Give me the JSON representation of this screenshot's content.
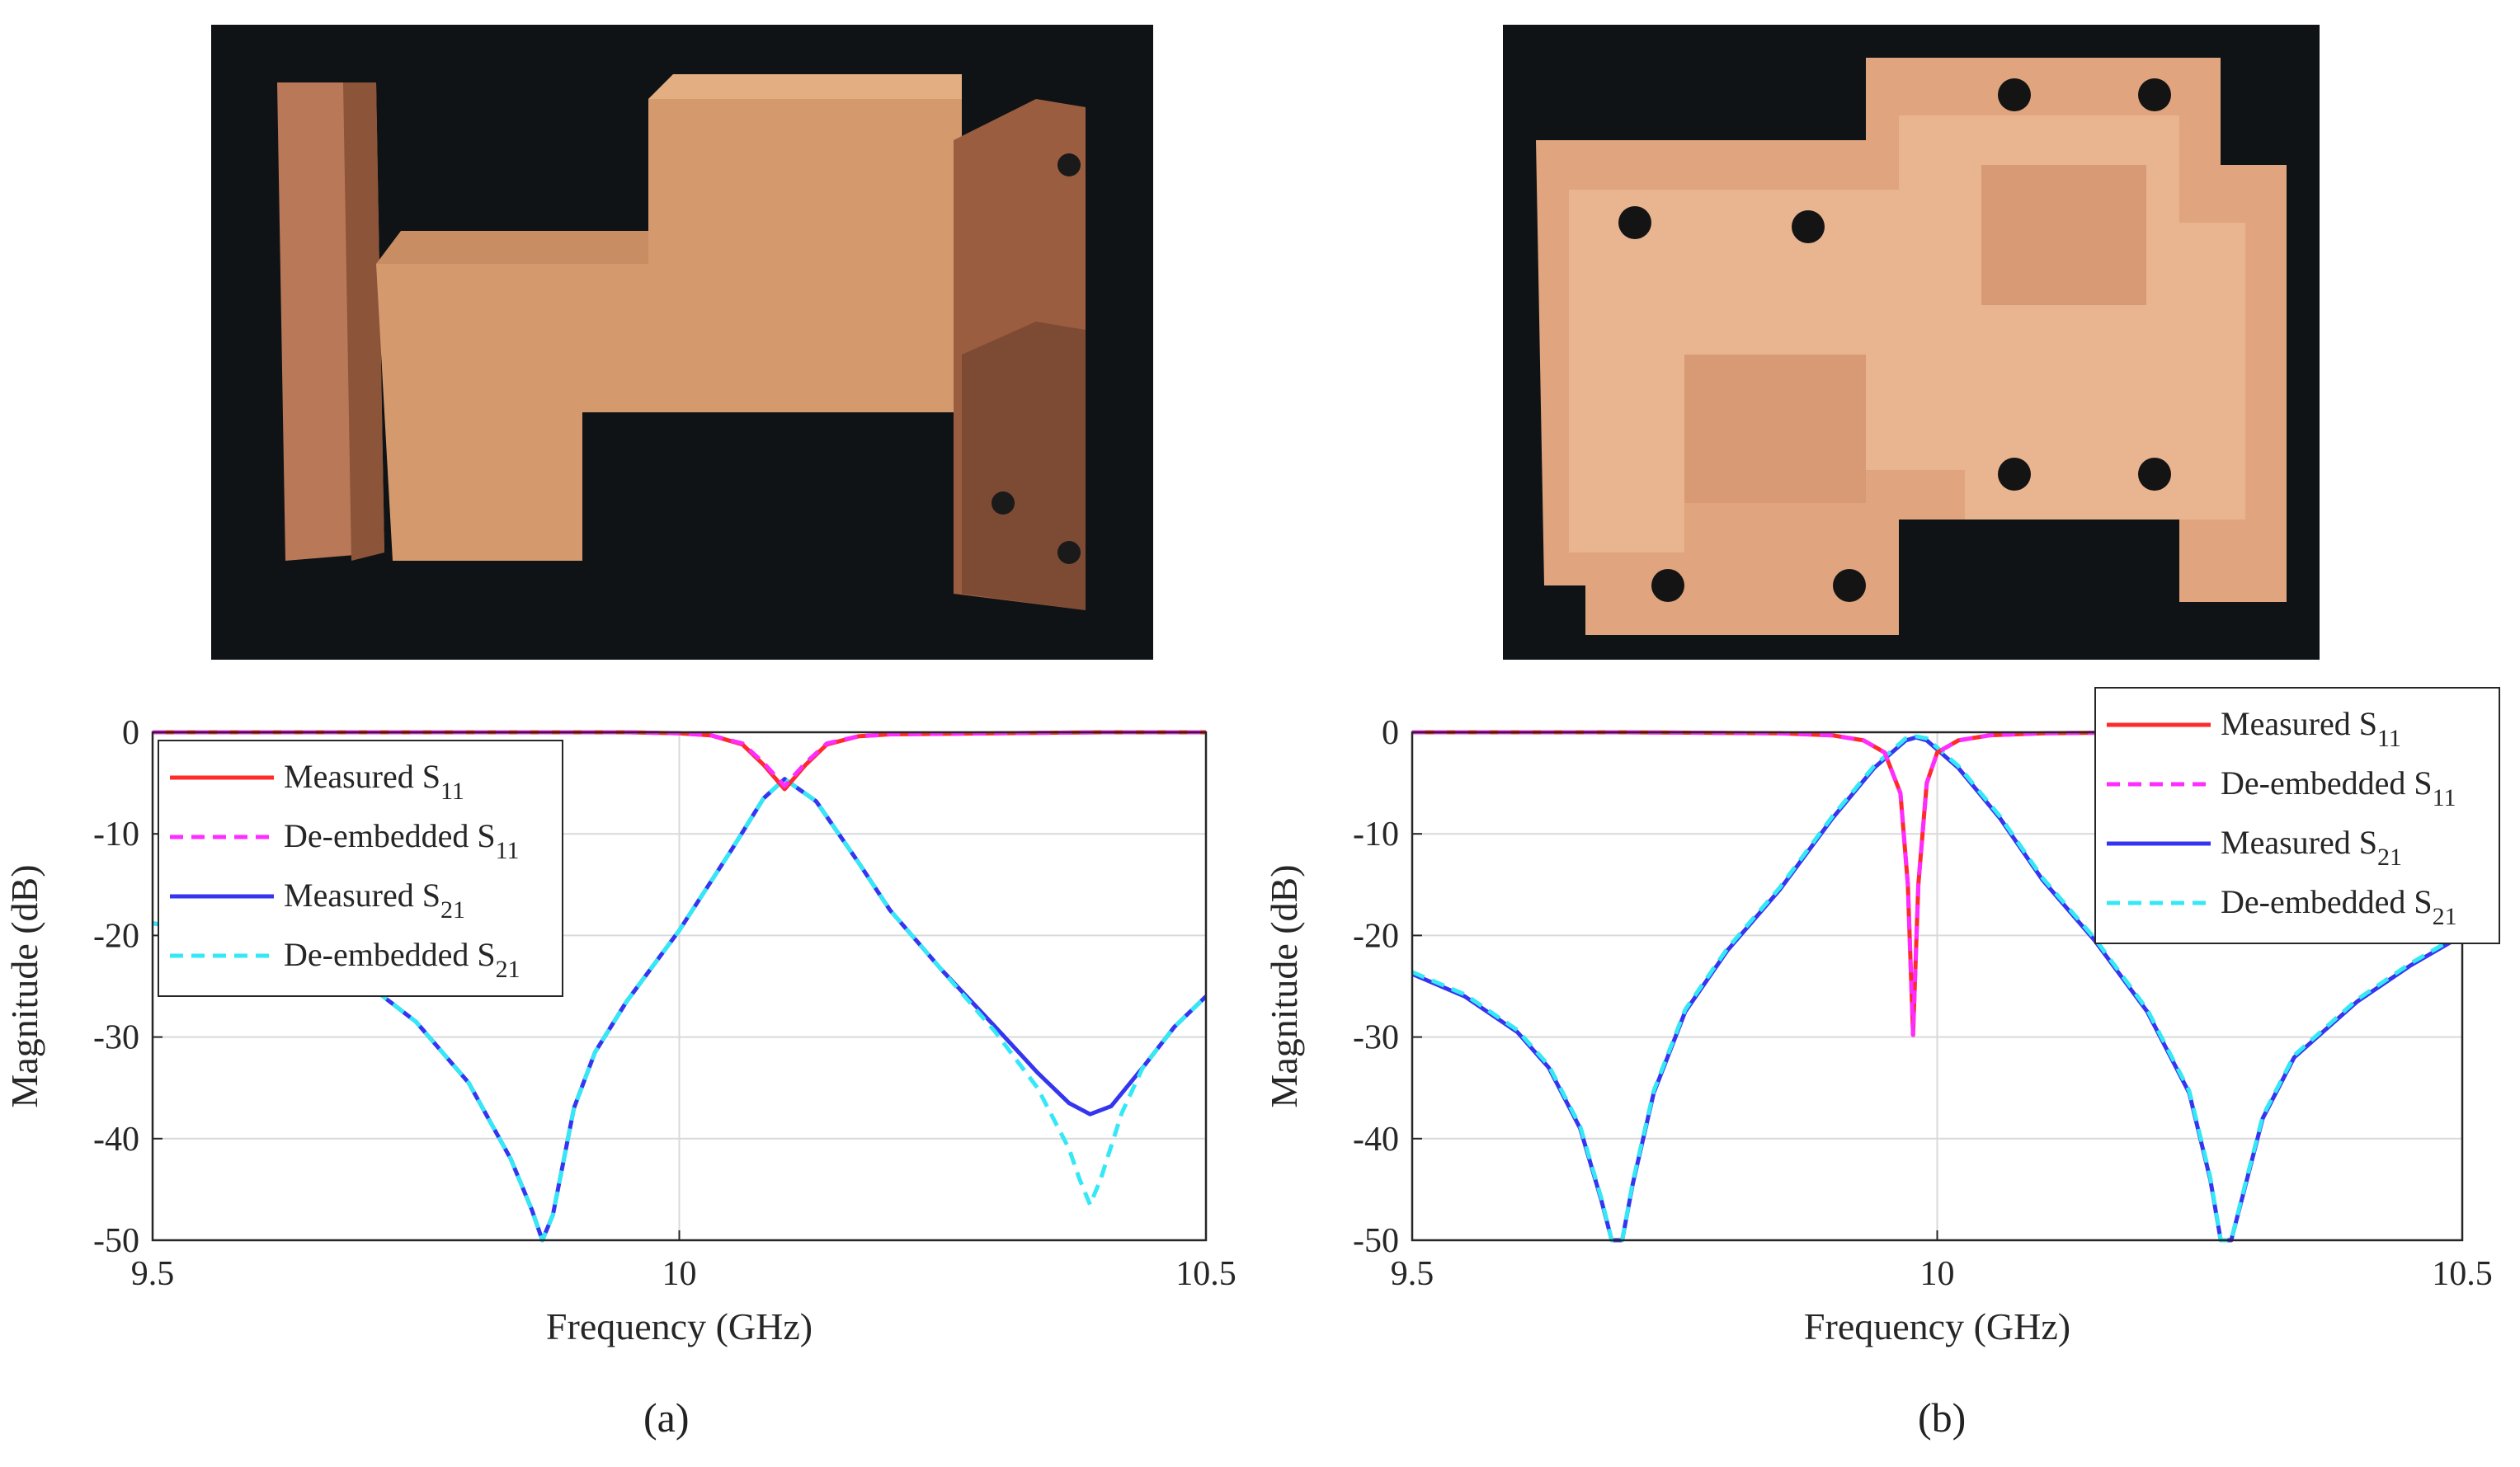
{
  "panel_labels": [
    "(a)",
    "(b)"
  ],
  "photos": [
    {
      "name": "waveguide-filter-assembled-photo"
    },
    {
      "name": "waveguide-filter-cavity-half-photo"
    }
  ],
  "colors": {
    "measured_s11": "#ff2a2a",
    "deembedded_s11": "#ff2cff",
    "measured_s21": "#3535f0",
    "deembedded_s21": "#35e8f5",
    "grid": "#d9d9d9",
    "photo_bg": "#101418",
    "copper": "#d99a72"
  },
  "chart_data": [
    {
      "type": "line",
      "panel": "(a)",
      "xlabel": "Frequency (GHz)",
      "ylabel": "Magnitude (dB)",
      "xlim": [
        9.5,
        10.5
      ],
      "ylim": [
        -50,
        0
      ],
      "xticks": [
        9.5,
        10,
        10.5
      ],
      "xtick_labels": [
        "9.5",
        "10",
        "10.5"
      ],
      "yticks": [
        0,
        -10,
        -20,
        -30,
        -40,
        -50
      ],
      "ytick_labels": [
        "0",
        "-10",
        "-20",
        "-30",
        "-40",
        "-50"
      ],
      "grid": true,
      "legend_position": "top-left",
      "series": [
        {
          "name": "Measured S11",
          "label_main": "Measured S",
          "label_sub": "11",
          "style": "solid",
          "color_key": "measured_s11",
          "x": [
            9.5,
            9.6,
            9.7,
            9.8,
            9.9,
            9.95,
            10.0,
            10.03,
            10.06,
            10.08,
            10.1,
            10.12,
            10.14,
            10.17,
            10.2,
            10.3,
            10.4,
            10.5
          ],
          "y": [
            0,
            0,
            0,
            0,
            0,
            0,
            -0.1,
            -0.3,
            -1.2,
            -3.2,
            -5.6,
            -3.2,
            -1.2,
            -0.4,
            -0.2,
            -0.1,
            0,
            0
          ]
        },
        {
          "name": "De-embedded S11",
          "label_main": "De-embedded S",
          "label_sub": "11",
          "style": "dashed",
          "color_key": "deembedded_s11",
          "x": [
            9.5,
            9.6,
            9.7,
            9.8,
            9.9,
            9.95,
            10.0,
            10.03,
            10.06,
            10.08,
            10.1,
            10.12,
            10.14,
            10.17,
            10.2,
            10.3,
            10.4,
            10.5
          ],
          "y": [
            0,
            0,
            0,
            0,
            0,
            0,
            -0.1,
            -0.3,
            -1.1,
            -3.0,
            -5.3,
            -3.0,
            -1.1,
            -0.4,
            -0.2,
            -0.1,
            0,
            0
          ]
        },
        {
          "name": "Measured S21",
          "label_main": "Measured S",
          "label_sub": "21",
          "style": "solid",
          "color_key": "measured_s21",
          "x": [
            9.5,
            9.6,
            9.7,
            9.75,
            9.8,
            9.84,
            9.86,
            9.87,
            9.88,
            9.9,
            9.92,
            9.95,
            10.0,
            10.05,
            10.08,
            10.1,
            10.13,
            10.17,
            10.2,
            10.25,
            10.3,
            10.34,
            10.37,
            10.39,
            10.41,
            10.44,
            10.47,
            10.5
          ],
          "y": [
            -18.8,
            -20.5,
            -24.5,
            -28.5,
            -34.5,
            -42,
            -47,
            -50,
            -47.5,
            -37,
            -31.5,
            -26.5,
            -19.5,
            -11.5,
            -6.5,
            -4.6,
            -6.8,
            -12.8,
            -17.5,
            -23.5,
            -29,
            -33.5,
            -36.5,
            -37.6,
            -36.8,
            -33,
            -29,
            -26
          ]
        },
        {
          "name": "De-embedded S21",
          "label_main": "De-embedded S",
          "label_sub": "21",
          "style": "dashed",
          "color_key": "deembedded_s21",
          "x": [
            9.5,
            9.6,
            9.7,
            9.75,
            9.8,
            9.84,
            9.86,
            9.87,
            9.88,
            9.9,
            9.92,
            9.95,
            10.0,
            10.05,
            10.08,
            10.1,
            10.13,
            10.17,
            10.2,
            10.25,
            10.3,
            10.34,
            10.37,
            10.38,
            10.39,
            10.4,
            10.42,
            10.44,
            10.47,
            10.5
          ],
          "y": [
            -18.8,
            -20.5,
            -24.5,
            -28.5,
            -34.5,
            -42,
            -47,
            -50,
            -47.5,
            -37,
            -31.5,
            -26.5,
            -19.5,
            -11.5,
            -6.5,
            -4.6,
            -6.8,
            -12.8,
            -17.5,
            -23.5,
            -29.5,
            -35,
            -41,
            -44,
            -46.5,
            -44,
            -37.5,
            -33,
            -29,
            -26
          ]
        }
      ]
    },
    {
      "type": "line",
      "panel": "(b)",
      "xlabel": "Frequency (GHz)",
      "ylabel": "Magnitude (dB)",
      "xlim": [
        9.5,
        10.5
      ],
      "ylim": [
        -50,
        0
      ],
      "xticks": [
        9.5,
        10,
        10.5
      ],
      "xtick_labels": [
        "9.5",
        "10",
        "10.5"
      ],
      "yticks": [
        0,
        -10,
        -20,
        -30,
        -40,
        -50
      ],
      "ytick_labels": [
        "0",
        "-10",
        "-20",
        "-30",
        "-40",
        "-50"
      ],
      "grid": true,
      "legend_position": "top-right",
      "series": [
        {
          "name": "Measured S11",
          "label_main": "Measured S",
          "label_sub": "11",
          "style": "solid",
          "color_key": "measured_s11",
          "x": [
            9.5,
            9.7,
            9.85,
            9.9,
            9.93,
            9.95,
            9.965,
            9.972,
            9.977,
            9.982,
            9.99,
            10.0,
            10.02,
            10.05,
            10.1,
            10.2,
            10.5
          ],
          "y": [
            0,
            0,
            -0.1,
            -0.3,
            -0.8,
            -2.0,
            -6.0,
            -15.0,
            -29.8,
            -15.0,
            -5.0,
            -2.0,
            -0.8,
            -0.3,
            -0.1,
            0,
            0
          ]
        },
        {
          "name": "De-embedded S11",
          "label_main": "De-embedded S",
          "label_sub": "11",
          "style": "dashed",
          "color_key": "deembedded_s11",
          "x": [
            9.5,
            9.7,
            9.85,
            9.9,
            9.93,
            9.95,
            9.965,
            9.972,
            9.977,
            9.982,
            9.99,
            10.0,
            10.02,
            10.05,
            10.1,
            10.2,
            10.5
          ],
          "y": [
            0,
            0,
            -0.1,
            -0.3,
            -0.8,
            -2.0,
            -6.0,
            -15.0,
            -29.8,
            -15.0,
            -5.0,
            -2.0,
            -0.8,
            -0.3,
            -0.1,
            0,
            0
          ]
        },
        {
          "name": "Measured S21",
          "label_main": "Measured S",
          "label_sub": "21",
          "style": "solid",
          "color_key": "measured_s21",
          "x": [
            9.5,
            9.55,
            9.6,
            9.63,
            9.66,
            9.68,
            9.69,
            9.7,
            9.71,
            9.73,
            9.76,
            9.8,
            9.85,
            9.9,
            9.94,
            9.97,
            9.98,
            9.99,
            10.02,
            10.06,
            10.1,
            10.15,
            10.2,
            10.24,
            10.26,
            10.27,
            10.28,
            10.29,
            10.31,
            10.34,
            10.4,
            10.45,
            10.5
          ],
          "y": [
            -23.8,
            -26,
            -29.5,
            -33,
            -39,
            -46,
            -50,
            -50,
            -44.5,
            -35.5,
            -27.5,
            -21.5,
            -15.5,
            -8.5,
            -3.5,
            -0.8,
            -0.5,
            -0.8,
            -3.5,
            -8.5,
            -14.5,
            -20.5,
            -27.5,
            -35.5,
            -44,
            -50,
            -50,
            -46,
            -38,
            -32,
            -26.5,
            -23,
            -20
          ]
        },
        {
          "name": "De-embedded S21",
          "label_main": "De-embedded S",
          "label_sub": "21",
          "style": "dashed",
          "color_key": "deembedded_s21",
          "x": [
            9.5,
            9.55,
            9.6,
            9.63,
            9.66,
            9.68,
            9.69,
            9.7,
            9.71,
            9.73,
            9.76,
            9.8,
            9.85,
            9.9,
            9.94,
            9.97,
            9.98,
            9.99,
            10.02,
            10.06,
            10.1,
            10.15,
            10.2,
            10.24,
            10.26,
            10.27,
            10.28,
            10.29,
            10.31,
            10.34,
            10.4,
            10.45,
            10.5
          ],
          "y": [
            -23.6,
            -25.8,
            -29.3,
            -32.8,
            -38.8,
            -45.8,
            -50,
            -50,
            -44.3,
            -35.3,
            -27.3,
            -21.3,
            -15.3,
            -8.3,
            -3.3,
            -0.6,
            -0.4,
            -0.6,
            -3.3,
            -8.3,
            -14.3,
            -20.3,
            -27.3,
            -35.3,
            -43.8,
            -50,
            -50,
            -45.8,
            -37.8,
            -31.8,
            -26.3,
            -22.8,
            -19.8
          ]
        }
      ]
    }
  ]
}
